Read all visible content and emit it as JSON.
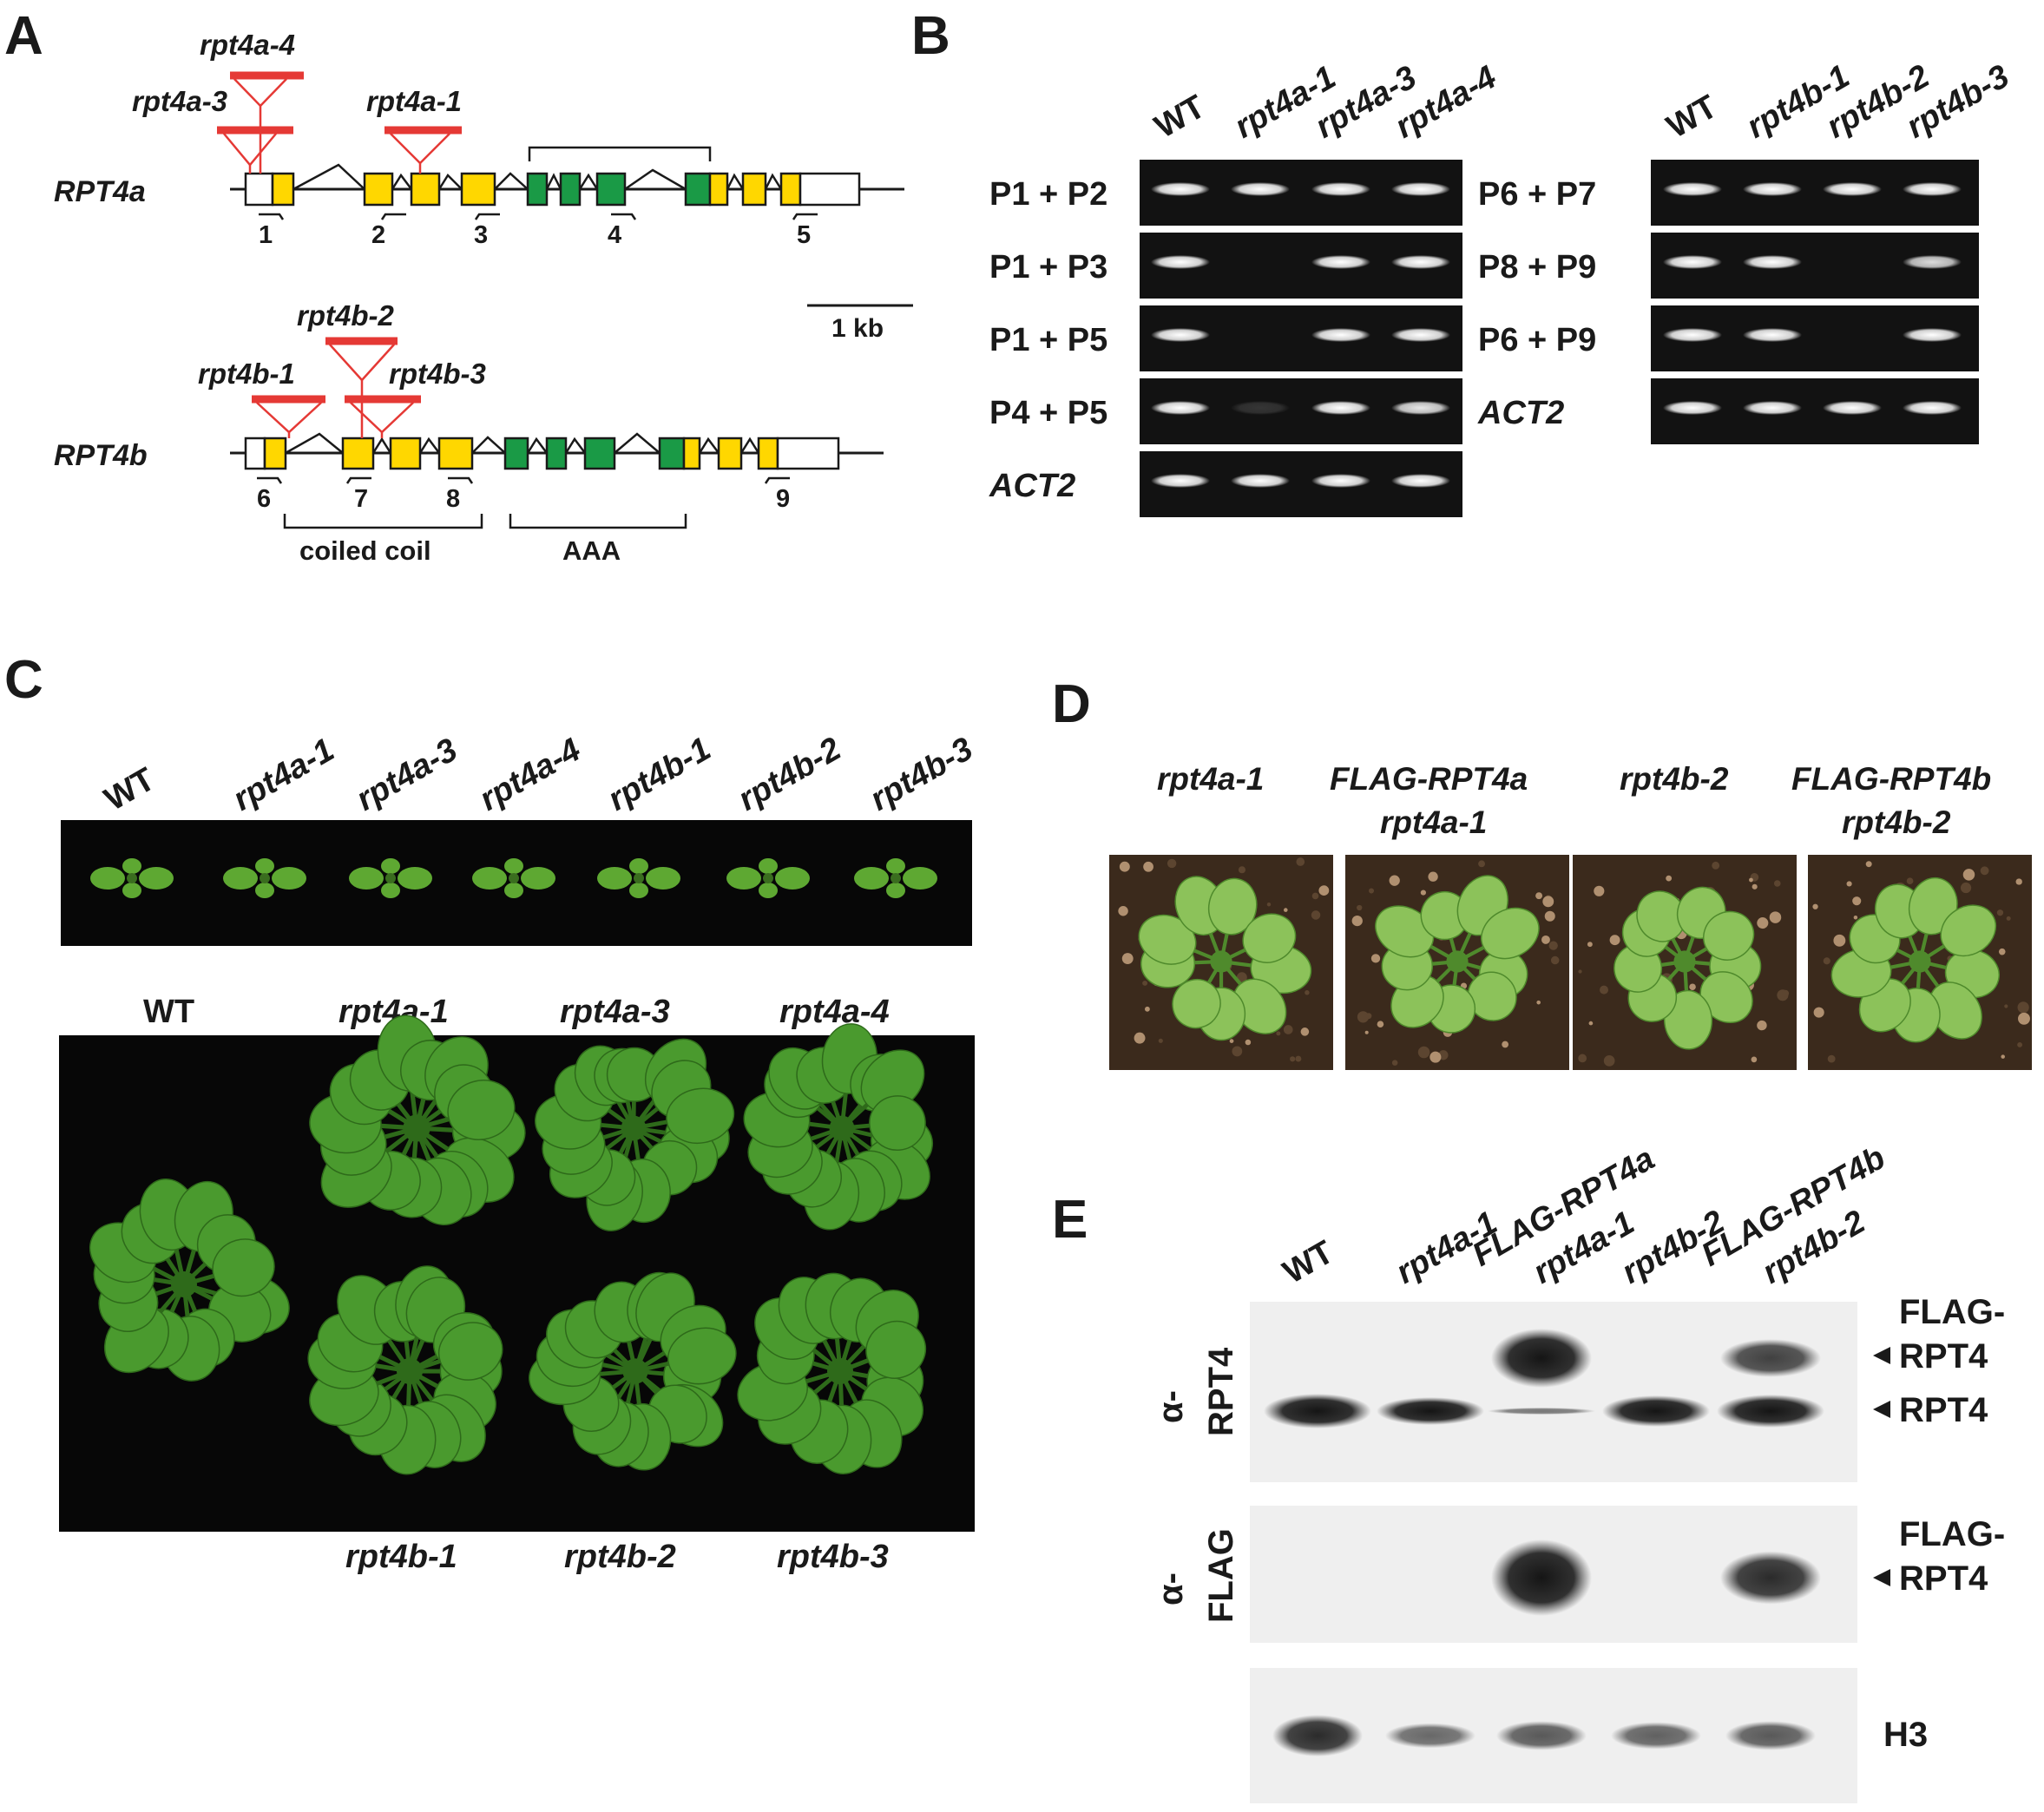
{
  "panels": {
    "A": "A",
    "B": "B",
    "C": "C",
    "D": "D",
    "E": "E"
  },
  "colors": {
    "cds": "#ffd700",
    "aaa_exon": "#1a9a46",
    "tdna": "#e53935",
    "gel_bg": "#121212",
    "band": "#f2f2f2",
    "blot_bg": "#efefef",
    "leaf": "#4a9a2e",
    "soil": "#3b2a1c"
  },
  "panelA": {
    "genes": [
      {
        "name": "RPT4a",
        "alleles": [
          "rpt4a-4",
          "rpt4a-3",
          "rpt4a-1"
        ],
        "primers": [
          "1",
          "2",
          "3",
          "4",
          "5"
        ]
      },
      {
        "name": "RPT4b",
        "alleles": [
          "rpt4b-2",
          "rpt4b-1",
          "rpt4b-3"
        ],
        "primers": [
          "6",
          "7",
          "8",
          "9"
        ]
      }
    ],
    "scale_label": "1 kb",
    "domains": [
      "coiled coil",
      "AAA"
    ]
  },
  "panelB": {
    "left": {
      "lanes": [
        "WT",
        "rpt4a-1",
        "rpt4a-3",
        "rpt4a-4"
      ],
      "rows": [
        {
          "label": "P1 + P2",
          "italic": false,
          "bands": [
            1,
            1,
            1,
            1
          ]
        },
        {
          "label": "P1 + P3",
          "italic": false,
          "bands": [
            1,
            0,
            1,
            1
          ]
        },
        {
          "label": "P1 + P5",
          "italic": false,
          "bands": [
            1,
            0,
            1,
            1
          ]
        },
        {
          "label": "P4 + P5",
          "italic": false,
          "bands": [
            1,
            0.15,
            1,
            0.9
          ]
        },
        {
          "label": "ACT2",
          "italic": true,
          "bands": [
            1,
            1,
            1,
            1
          ]
        }
      ]
    },
    "right": {
      "lanes": [
        "WT",
        "rpt4b-1",
        "rpt4b-2",
        "rpt4b-3"
      ],
      "rows": [
        {
          "label": "P6 + P7",
          "italic": false,
          "bands": [
            1,
            1,
            1,
            1
          ]
        },
        {
          "label": "P8 + P9",
          "italic": false,
          "bands": [
            1,
            1,
            0,
            0.85
          ]
        },
        {
          "label": "P6 + P9",
          "italic": false,
          "bands": [
            1,
            1,
            0,
            1
          ]
        },
        {
          "label": "ACT2",
          "italic": true,
          "bands": [
            1,
            1,
            1,
            1
          ]
        }
      ]
    }
  },
  "panelC": {
    "seedling_labels": [
      "WT",
      "rpt4a-1",
      "rpt4a-3",
      "rpt4a-4",
      "rpt4b-1",
      "rpt4b-2",
      "rpt4b-3"
    ],
    "top_labels": [
      "WT",
      "rpt4a-1",
      "rpt4a-3",
      "rpt4a-4"
    ],
    "bottom_labels": [
      "rpt4b-1",
      "rpt4b-2",
      "rpt4b-3"
    ]
  },
  "panelD": {
    "labels": [
      {
        "line1": "rpt4a-1",
        "line2": ""
      },
      {
        "line1": "FLAG-RPT4a",
        "line2": "rpt4a-1"
      },
      {
        "line1": "rpt4b-2",
        "line2": ""
      },
      {
        "line1": "FLAG-RPT4b",
        "line2": "rpt4b-2"
      }
    ]
  },
  "panelE": {
    "lanes": [
      {
        "line1": "WT",
        "line2": ""
      },
      {
        "line1": "rpt4a-1",
        "line2": ""
      },
      {
        "line1": "FLAG-RPT4a",
        "line2": "rpt4a-1"
      },
      {
        "line1": "rpt4b-2",
        "line2": ""
      },
      {
        "line1": "FLAG-RPT4b",
        "line2": "rpt4b-2"
      }
    ],
    "blots": [
      {
        "antibody_prefix": "α-",
        "antibody": "RPT4",
        "right_labels": [
          "FLAG-",
          "RPT4",
          "RPT4"
        ],
        "flag_band": [
          0,
          0,
          1,
          0,
          0.45
        ],
        "native_band": [
          1,
          0.8,
          0.2,
          0.9,
          0.95
        ]
      },
      {
        "antibody_prefix": "α-",
        "antibody": "FLAG",
        "right_labels": [
          "FLAG-",
          "RPT4"
        ],
        "flag_band": [
          0,
          0,
          1,
          0,
          0.55
        ]
      },
      {
        "antibody_prefix": "",
        "antibody": "",
        "right_labels": [
          "H3"
        ],
        "band": [
          1,
          0.6,
          0.7,
          0.65,
          0.7
        ]
      }
    ]
  }
}
